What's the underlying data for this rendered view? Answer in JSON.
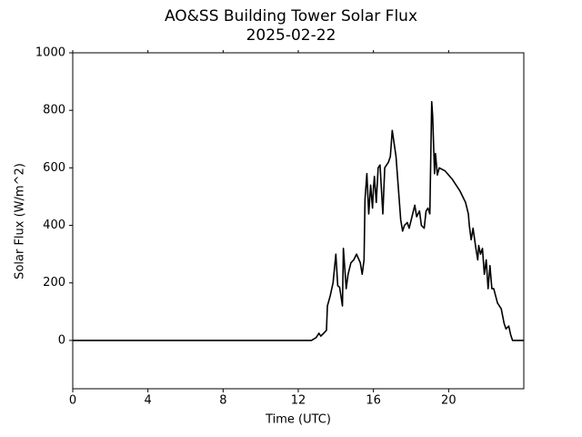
{
  "chart_data": {
    "type": "line",
    "title": "AO&SS Building Tower Solar Flux",
    "subtitle": "2025-02-22",
    "xlabel": "Time (UTC)",
    "ylabel": "Solar Flux (W/m^2)",
    "color": "#000000",
    "x": [
      0,
      12.7,
      12.95,
      13.1,
      13.2,
      13.35,
      13.5,
      13.55,
      13.7,
      13.85,
      14.0,
      14.1,
      14.2,
      14.35,
      14.4,
      14.55,
      14.65,
      14.8,
      14.95,
      15.1,
      15.3,
      15.4,
      15.5,
      15.55,
      15.65,
      15.75,
      15.85,
      15.95,
      16.0,
      16.05,
      16.15,
      16.25,
      16.35,
      16.5,
      16.6,
      16.7,
      16.8,
      16.9,
      17.0,
      17.2,
      17.45,
      17.55,
      17.65,
      17.8,
      17.9,
      18.2,
      18.3,
      18.45,
      18.55,
      18.7,
      18.8,
      18.9,
      19.0,
      19.1,
      19.15,
      19.25,
      19.3,
      19.4,
      19.5,
      19.8,
      20.2,
      20.6,
      20.9,
      21.05,
      21.1,
      21.2,
      21.3,
      21.45,
      21.55,
      21.6,
      21.7,
      21.8,
      21.9,
      22.0,
      22.1,
      22.2,
      22.3,
      22.4,
      22.6,
      22.8,
      22.95,
      23.05,
      23.2,
      23.3,
      23.4,
      23.55,
      23.7,
      24.0
    ],
    "values": [
      0,
      0,
      10,
      25,
      15,
      25,
      35,
      120,
      155,
      200,
      300,
      190,
      185,
      120,
      320,
      180,
      230,
      270,
      280,
      300,
      270,
      230,
      280,
      490,
      580,
      440,
      540,
      460,
      530,
      570,
      480,
      600,
      610,
      440,
      600,
      610,
      620,
      640,
      730,
      640,
      420,
      380,
      400,
      410,
      390,
      470,
      430,
      450,
      400,
      390,
      450,
      460,
      440,
      830,
      780,
      580,
      650,
      575,
      600,
      590,
      560,
      520,
      480,
      440,
      400,
      350,
      390,
      320,
      280,
      330,
      300,
      320,
      230,
      280,
      180,
      260,
      180,
      180,
      130,
      110,
      60,
      40,
      50,
      20,
      0,
      0,
      0,
      0
    ],
    "xlim": [
      0,
      24
    ],
    "xticks": [
      0,
      4,
      8,
      12,
      16,
      20
    ],
    "ylim": [
      -168,
      1000
    ],
    "yticks": [
      0,
      200,
      400,
      600,
      800,
      1000
    ],
    "grid": false
  }
}
